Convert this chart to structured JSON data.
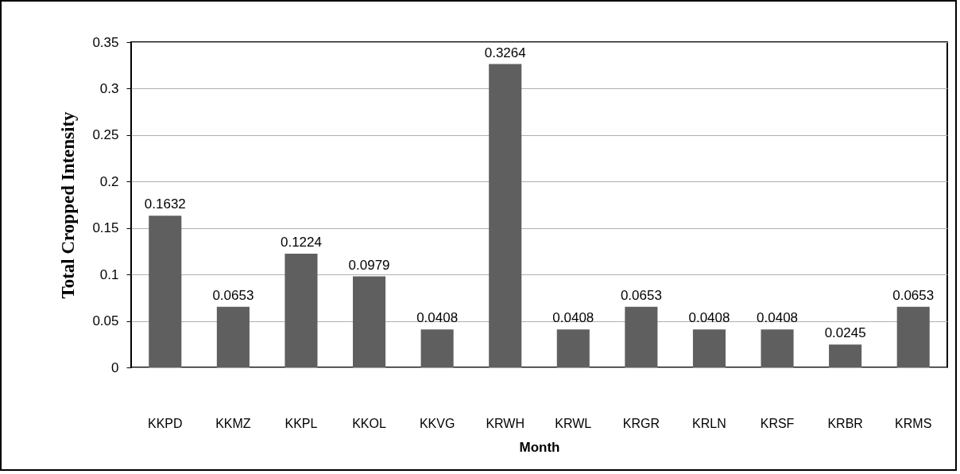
{
  "chart_data": {
    "type": "bar",
    "xlabel": "Month",
    "ylabel": "Total Cropped Intensity",
    "categories": [
      "KKPD",
      "KKMZ",
      "KKPL",
      "KKOL",
      "KKVG",
      "KRWH",
      "KRWL",
      "KRGR",
      "KRLN",
      "KRSF",
      "KRBR",
      "KRMS"
    ],
    "values": [
      0.1632,
      0.0653,
      0.1224,
      0.0979,
      0.0408,
      0.3264,
      0.0408,
      0.0653,
      0.0408,
      0.0408,
      0.0245,
      0.0653
    ],
    "color": "#5f5f5f",
    "ylim": [
      0,
      0.35
    ],
    "yticks": [
      0,
      0.05,
      0.1,
      0.15,
      0.2,
      0.25,
      0.3,
      0.35
    ],
    "grid": "y",
    "data_labels": true
  }
}
